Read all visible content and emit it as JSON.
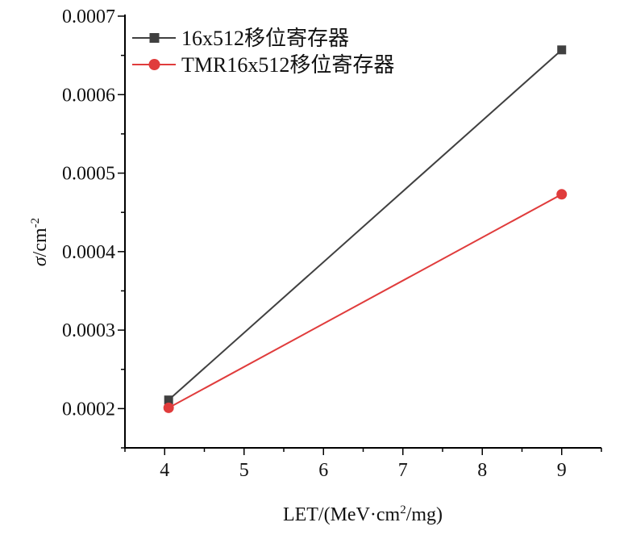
{
  "chart_data": {
    "type": "line",
    "title": "",
    "xlabel": {
      "prefix": "LET/(MeV·cm",
      "sup": "2",
      "suffix": "/mg)"
    },
    "ylabel": {
      "symbol": "σ",
      "unit": "/cm",
      "sup": "-2"
    },
    "xlim": [
      3.5,
      9.5
    ],
    "ylim": [
      0.00015,
      0.0007
    ],
    "x_ticks": [
      "4",
      "5",
      "6",
      "7",
      "8",
      "9"
    ],
    "y_ticks": [
      "0.0002",
      "0.0003",
      "0.0004",
      "0.0005",
      "0.0006",
      "0.0007"
    ],
    "legend_position": "top-left",
    "grid": false,
    "series": [
      {
        "name": "16x512移位寄存器",
        "color": "#404040",
        "marker": "square",
        "x": [
          4.05,
          9.0
        ],
        "y": [
          0.000211,
          0.000657
        ]
      },
      {
        "name": "TMR16x512移位寄存器",
        "color": "#e03c3c",
        "marker": "circle",
        "x": [
          4.05,
          9.0
        ],
        "y": [
          0.000201,
          0.000473
        ]
      }
    ]
  }
}
